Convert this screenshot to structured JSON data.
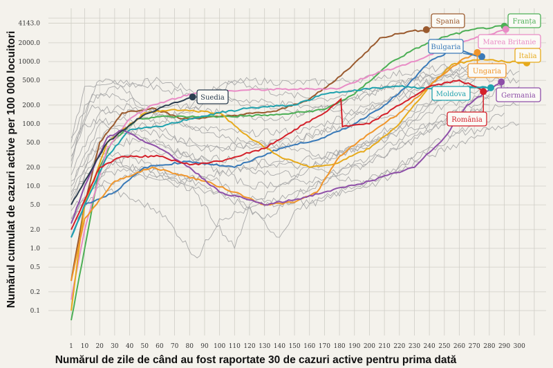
{
  "chart_data": {
    "type": "line",
    "title": "",
    "xlabel": "Numărul de zile de când au fost raportate 30 de cazuri active pentru prima dată",
    "ylabel": "Numărul cumulat de cazuri active per 100 000 locuitori",
    "yscale": "log",
    "xlim": [
      1,
      310
    ],
    "ylim": [
      0.05,
      6000
    ],
    "grid": true,
    "x_ticks": [
      "1",
      "10",
      "20",
      "30",
      "40",
      "50",
      "60",
      "70",
      "80",
      "90",
      "100",
      "110",
      "120",
      "130",
      "140",
      "150",
      "160",
      "170",
      "180",
      "190",
      "200",
      "210",
      "220",
      "230",
      "240",
      "250",
      "260",
      "270",
      "280",
      "290",
      "300"
    ],
    "y_ticks": [
      {
        "value": 4143,
        "label": "4143.0"
      },
      {
        "value": 2000,
        "label": "2000.0"
      },
      {
        "value": 1000,
        "label": "1000.0"
      },
      {
        "value": 500,
        "label": "500.0"
      },
      {
        "value": 200,
        "label": "200.0"
      },
      {
        "value": 100,
        "label": "100.0"
      },
      {
        "value": 50,
        "label": "50.0"
      },
      {
        "value": 20,
        "label": "20.0"
      },
      {
        "value": 10,
        "label": "10.0"
      },
      {
        "value": 5,
        "label": "5.0"
      },
      {
        "value": 2,
        "label": "2.0"
      },
      {
        "value": 1,
        "label": "1.0"
      },
      {
        "value": 0.5,
        "label": "0.5"
      },
      {
        "value": 0.2,
        "label": "0.2"
      },
      {
        "value": 0.1,
        "label": "0.1"
      }
    ],
    "series": [
      {
        "name": "Spania",
        "color": "#9a5a2e",
        "points": [
          [
            1,
            0.3
          ],
          [
            10,
            5
          ],
          [
            20,
            50
          ],
          [
            35,
            150
          ],
          [
            55,
            180
          ],
          [
            75,
            120
          ],
          [
            100,
            130
          ],
          [
            138,
            160
          ],
          [
            160,
            250
          ],
          [
            175,
            450
          ],
          [
            195,
            1200
          ],
          [
            207,
            2400
          ],
          [
            225,
            3000
          ],
          [
            238,
            3250
          ]
        ]
      },
      {
        "name": "Franța",
        "color": "#4caf55",
        "points": [
          [
            1,
            0.07
          ],
          [
            10,
            1
          ],
          [
            20,
            20
          ],
          [
            28,
            50
          ],
          [
            45,
            120
          ],
          [
            60,
            130
          ],
          [
            100,
            130
          ],
          [
            140,
            140
          ],
          [
            170,
            170
          ],
          [
            190,
            300
          ],
          [
            215,
            1000
          ],
          [
            235,
            1800
          ],
          [
            250,
            2500
          ],
          [
            270,
            3300
          ],
          [
            290,
            3700
          ]
        ]
      },
      {
        "name": "Marea Britanie",
        "color": "#e98cc6",
        "points": [
          [
            1,
            0.15
          ],
          [
            10,
            2
          ],
          [
            25,
            40
          ],
          [
            40,
            120
          ],
          [
            55,
            200
          ],
          [
            80,
            300
          ],
          [
            100,
            330
          ],
          [
            120,
            350
          ],
          [
            150,
            360
          ],
          [
            180,
            370
          ],
          [
            200,
            600
          ],
          [
            230,
            1000
          ],
          [
            260,
            2000
          ],
          [
            291,
            3300
          ]
        ]
      },
      {
        "name": "Bulgaria",
        "color": "#3a7ab8",
        "points": [
          [
            1,
            1.5
          ],
          [
            10,
            5
          ],
          [
            30,
            8
          ],
          [
            50,
            20
          ],
          [
            80,
            25
          ],
          [
            110,
            20
          ],
          [
            140,
            40
          ],
          [
            170,
            60
          ],
          [
            190,
            100
          ],
          [
            210,
            200
          ],
          [
            225,
            400
          ],
          [
            240,
            1000
          ],
          [
            255,
            1500
          ],
          [
            265,
            1400
          ],
          [
            275,
            1200
          ]
        ]
      },
      {
        "name": "Italia",
        "color": "#e6aa1c",
        "points": [
          [
            1,
            0.1
          ],
          [
            10,
            5
          ],
          [
            25,
            50
          ],
          [
            50,
            150
          ],
          [
            70,
            170
          ],
          [
            100,
            150
          ],
          [
            120,
            60
          ],
          [
            140,
            30
          ],
          [
            160,
            20
          ],
          [
            175,
            22
          ],
          [
            200,
            40
          ],
          [
            220,
            100
          ],
          [
            240,
            400
          ],
          [
            255,
            900
          ],
          [
            275,
            1100
          ],
          [
            290,
            1000
          ],
          [
            305,
            950
          ]
        ]
      },
      {
        "name": "Ungaria",
        "color": "#f0952a",
        "points": [
          [
            1,
            0.3
          ],
          [
            10,
            3
          ],
          [
            30,
            12
          ],
          [
            55,
            20
          ],
          [
            90,
            12
          ],
          [
            110,
            8
          ],
          [
            130,
            5
          ],
          [
            150,
            5.5
          ],
          [
            165,
            8
          ],
          [
            180,
            30
          ],
          [
            200,
            70
          ],
          [
            220,
            150
          ],
          [
            240,
            400
          ],
          [
            260,
            1000
          ],
          [
            272,
            1400
          ]
        ]
      },
      {
        "name": "Moldova",
        "color": "#1fa2ae",
        "points": [
          [
            1,
            1.5
          ],
          [
            10,
            5
          ],
          [
            25,
            30
          ],
          [
            40,
            80
          ],
          [
            60,
            90
          ],
          [
            80,
            120
          ],
          [
            100,
            150
          ],
          [
            120,
            180
          ],
          [
            150,
            200
          ],
          [
            170,
            300
          ],
          [
            190,
            350
          ],
          [
            220,
            400
          ],
          [
            250,
            350
          ],
          [
            270,
            400
          ],
          [
            281,
            380
          ]
        ]
      },
      {
        "name": "Germania",
        "color": "#8e4fa8",
        "points": [
          [
            1,
            2.5
          ],
          [
            10,
            10
          ],
          [
            25,
            60
          ],
          [
            35,
            80
          ],
          [
            60,
            40
          ],
          [
            80,
            20
          ],
          [
            100,
            8
          ],
          [
            120,
            6
          ],
          [
            130,
            5
          ],
          [
            150,
            6
          ],
          [
            170,
            8
          ],
          [
            200,
            12
          ],
          [
            230,
            20
          ],
          [
            250,
            60
          ],
          [
            265,
            200
          ],
          [
            280,
            350
          ],
          [
            288,
            470
          ]
        ]
      },
      {
        "name": "România",
        "color": "#d4202a",
        "points": [
          [
            1,
            2
          ],
          [
            10,
            6
          ],
          [
            20,
            20
          ],
          [
            35,
            30
          ],
          [
            60,
            30
          ],
          [
            80,
            22
          ],
          [
            100,
            25
          ],
          [
            130,
            40
          ],
          [
            150,
            80
          ],
          [
            170,
            150
          ],
          [
            181,
            250
          ],
          [
            182,
            90
          ],
          [
            200,
            100
          ],
          [
            220,
            200
          ],
          [
            240,
            400
          ],
          [
            260,
            500
          ],
          [
            270,
            400
          ],
          [
            276,
            330
          ]
        ]
      },
      {
        "name": "Suedia",
        "color": "#2c3e50",
        "points": [
          [
            1,
            5
          ],
          [
            10,
            12
          ],
          [
            25,
            50
          ],
          [
            45,
            120
          ],
          [
            60,
            180
          ],
          [
            82,
            270
          ]
        ]
      }
    ],
    "background_series": [
      [
        [
          1,
          20
        ],
        [
          10,
          200
        ],
        [
          30,
          400
        ],
        [
          60,
          500
        ],
        [
          90,
          300
        ],
        [
          120,
          200
        ],
        [
          160,
          150
        ],
        [
          200,
          300
        ],
        [
          240,
          600
        ],
        [
          280,
          800
        ]
      ],
      [
        [
          1,
          30
        ],
        [
          15,
          300
        ],
        [
          40,
          250
        ],
        [
          70,
          100
        ],
        [
          100,
          60
        ],
        [
          140,
          40
        ],
        [
          180,
          100
        ],
        [
          220,
          300
        ],
        [
          260,
          700
        ],
        [
          290,
          900
        ]
      ],
      [
        [
          1,
          10
        ],
        [
          20,
          100
        ],
        [
          50,
          60
        ],
        [
          80,
          30
        ],
        [
          110,
          20
        ],
        [
          150,
          15
        ],
        [
          190,
          40
        ],
        [
          230,
          150
        ],
        [
          270,
          500
        ]
      ],
      [
        [
          1,
          5
        ],
        [
          15,
          40
        ],
        [
          40,
          30
        ],
        [
          70,
          15
        ],
        [
          100,
          8
        ],
        [
          130,
          3
        ],
        [
          160,
          10
        ],
        [
          200,
          30
        ],
        [
          240,
          100
        ],
        [
          280,
          300
        ]
      ],
      [
        [
          1,
          50
        ],
        [
          10,
          400
        ],
        [
          30,
          500
        ],
        [
          50,
          200
        ],
        [
          80,
          90
        ],
        [
          120,
          70
        ],
        [
          160,
          80
        ],
        [
          200,
          200
        ],
        [
          250,
          600
        ],
        [
          300,
          700
        ]
      ],
      [
        [
          1,
          3
        ],
        [
          20,
          15
        ],
        [
          50,
          20
        ],
        [
          80,
          10
        ],
        [
          110,
          1
        ],
        [
          120,
          5
        ],
        [
          160,
          20
        ],
        [
          200,
          50
        ],
        [
          250,
          200
        ],
        [
          300,
          400
        ]
      ],
      [
        [
          1,
          8
        ],
        [
          25,
          80
        ],
        [
          60,
          100
        ],
        [
          100,
          400
        ],
        [
          120,
          500
        ],
        [
          150,
          450
        ],
        [
          190,
          500
        ],
        [
          230,
          700
        ],
        [
          270,
          900
        ]
      ],
      [
        [
          1,
          2
        ],
        [
          20,
          10
        ],
        [
          60,
          4
        ],
        [
          85,
          0.7
        ],
        [
          100,
          3
        ],
        [
          140,
          6
        ],
        [
          180,
          15
        ],
        [
          220,
          40
        ],
        [
          260,
          150
        ],
        [
          300,
          200
        ]
      ],
      [
        [
          1,
          15
        ],
        [
          20,
          150
        ],
        [
          40,
          200
        ],
        [
          70,
          60
        ],
        [
          100,
          40
        ],
        [
          140,
          50
        ],
        [
          180,
          90
        ],
        [
          220,
          150
        ],
        [
          260,
          300
        ]
      ],
      [
        [
          1,
          40
        ],
        [
          10,
          100
        ],
        [
          40,
          120
        ],
        [
          80,
          150
        ],
        [
          110,
          500
        ],
        [
          140,
          300
        ],
        [
          170,
          250
        ],
        [
          210,
          400
        ],
        [
          250,
          600
        ],
        [
          300,
          500
        ]
      ],
      [
        [
          1,
          6
        ],
        [
          20,
          40
        ],
        [
          50,
          60
        ],
        [
          80,
          30
        ],
        [
          120,
          25
        ],
        [
          160,
          20
        ],
        [
          200,
          10
        ],
        [
          240,
          30
        ],
        [
          280,
          80
        ]
      ],
      [
        [
          1,
          4
        ],
        [
          30,
          25
        ],
        [
          60,
          15
        ],
        [
          100,
          12
        ],
        [
          140,
          1.5
        ],
        [
          150,
          4
        ],
        [
          180,
          8
        ],
        [
          220,
          20
        ],
        [
          260,
          70
        ],
        [
          300,
          100
        ]
      ],
      [
        [
          1,
          25
        ],
        [
          15,
          200
        ],
        [
          35,
          150
        ],
        [
          70,
          200
        ],
        [
          100,
          150
        ],
        [
          140,
          120
        ],
        [
          180,
          200
        ],
        [
          220,
          500
        ],
        [
          260,
          800
        ]
      ],
      [
        [
          1,
          12
        ],
        [
          20,
          60
        ],
        [
          50,
          80
        ],
        [
          90,
          40
        ],
        [
          130,
          50
        ],
        [
          170,
          30
        ],
        [
          210,
          60
        ],
        [
          250,
          250
        ],
        [
          290,
          400
        ]
      ],
      [
        [
          1,
          3
        ],
        [
          25,
          20
        ],
        [
          50,
          40
        ],
        [
          80,
          30
        ],
        [
          120,
          10
        ],
        [
          160,
          12
        ],
        [
          200,
          25
        ],
        [
          240,
          80
        ],
        [
          280,
          200
        ]
      ],
      [
        [
          1,
          60
        ],
        [
          20,
          500
        ],
        [
          50,
          400
        ],
        [
          80,
          300
        ],
        [
          110,
          250
        ],
        [
          150,
          200
        ],
        [
          190,
          150
        ],
        [
          230,
          300
        ],
        [
          270,
          600
        ]
      ],
      [
        [
          1,
          7
        ],
        [
          20,
          30
        ],
        [
          40,
          20
        ],
        [
          70,
          10
        ],
        [
          100,
          8
        ],
        [
          140,
          5
        ],
        [
          170,
          6
        ],
        [
          210,
          15
        ],
        [
          250,
          60
        ],
        [
          290,
          150
        ]
      ],
      [
        [
          1,
          2.5
        ],
        [
          15,
          10
        ],
        [
          45,
          15
        ],
        [
          75,
          12
        ],
        [
          110,
          18
        ],
        [
          150,
          25
        ],
        [
          190,
          40
        ],
        [
          230,
          80
        ],
        [
          280,
          250
        ]
      ]
    ]
  }
}
